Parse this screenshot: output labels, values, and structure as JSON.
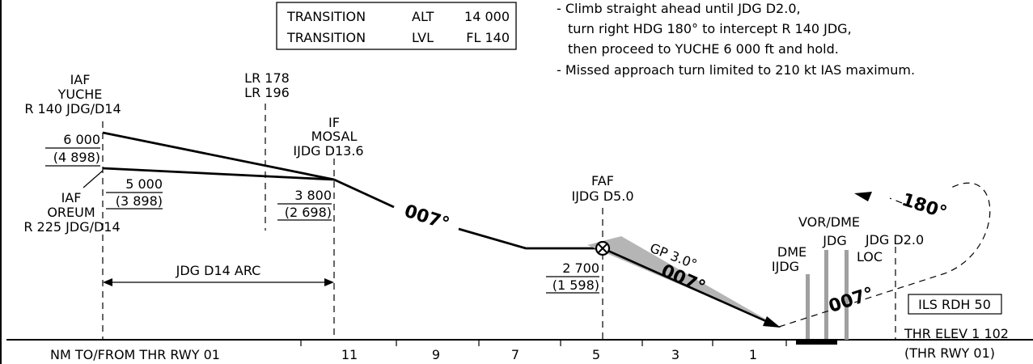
{
  "transition_box": {
    "row1": [
      "TRANSITION",
      "ALT",
      "14 000"
    ],
    "row2": [
      "TRANSITION",
      "LVL",
      "FL 140"
    ]
  },
  "notes": [
    "- Climb straight ahead until JDG D2.0,",
    "turn right HDG 180° to intercept R 140 JDG,",
    "then proceed to YUCHE 6 000 ft and hold.",
    "- Missed approach turn limited to 210 kt IAS maximum."
  ],
  "fixes": {
    "yuche": {
      "type": "IAF",
      "name": "YUCHE",
      "radial": "R 140 JDG/D14",
      "alt": "6 000",
      "alt_agl": "(4 898)"
    },
    "oreum": {
      "type": "IAF",
      "name": "OREUM",
      "radial": "R 225 JDG/D14",
      "alt": "5 000",
      "alt_agl": "(3 898)"
    },
    "lr": {
      "line1": "LR 178",
      "line2": "LR 196"
    },
    "mosal": {
      "type": "IF",
      "name": "MOSAL",
      "dist": "IJDG D13.6",
      "alt": "3 800",
      "alt_agl": "(2 698)"
    },
    "faf": {
      "type": "FAF",
      "dist": "IJDG D5.0",
      "alt": "2 700",
      "alt_agl": "(1 598)"
    }
  },
  "tracks": {
    "initial": "007°",
    "final": "007°",
    "missed": "007°",
    "turn_heading": "180°",
    "glidepath": "GP 3.0°"
  },
  "arc_label": "JDG D14 ARC",
  "navaids": {
    "dme_line1": "DME",
    "dme_line2": "IJDG",
    "vordme_line1": "VOR/DME",
    "vordme_line2": "JDG",
    "loc": "LOC",
    "d2": "JDG D2.0"
  },
  "ils_rdh": "ILS RDH 50",
  "threshold": {
    "elev": "THR ELEV 1 102",
    "rwy": "(THR RWY 01)"
  },
  "axis": {
    "caption": "NM TO/FROM THR RWY 01",
    "ticks": [
      "11",
      "9",
      "7",
      "5",
      "3",
      "1"
    ]
  }
}
